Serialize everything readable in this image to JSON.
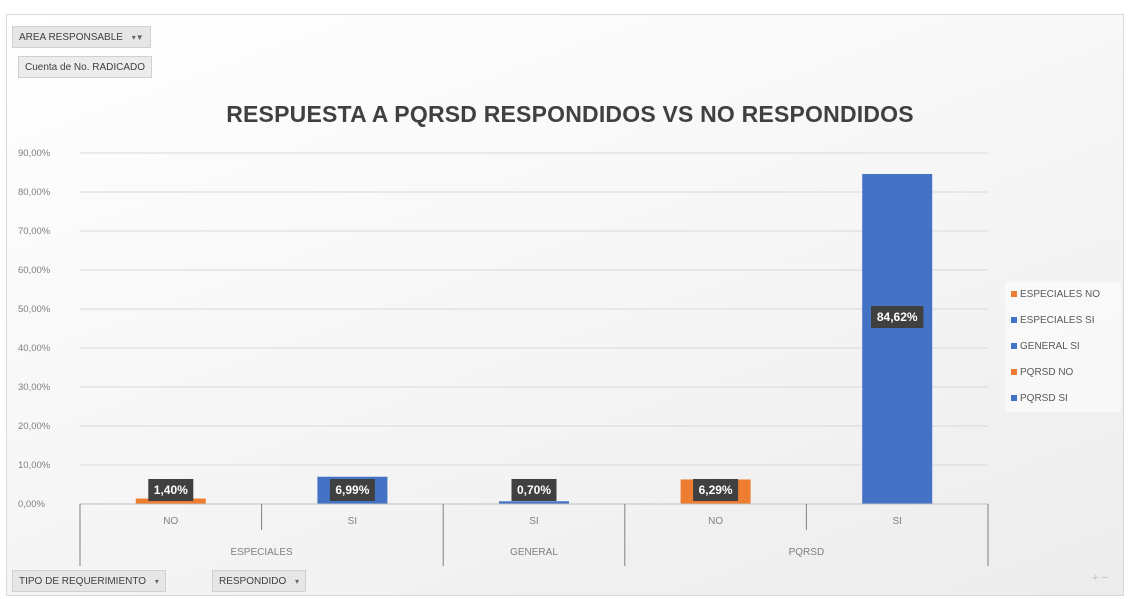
{
  "pivot": {
    "area_filter": "AREA RESPONSABLE",
    "value_field": "Cuenta de No. RADICADO",
    "row_field_1": "TIPO DE REQUERIMIENTO",
    "row_field_2": "RESPONDIDO",
    "zoom_label": "+ −"
  },
  "chart_data": {
    "type": "bar",
    "title": "RESPUESTA A PQRSD RESPONDIDOS VS NO RESPONDIDOS",
    "xlabel": "",
    "ylabel": "",
    "ylim": [
      0,
      90
    ],
    "yticks": [
      "0,00%",
      "10,00%",
      "20,00%",
      "30,00%",
      "40,00%",
      "50,00%",
      "60,00%",
      "70,00%",
      "80,00%",
      "90,00%"
    ],
    "categories": [
      "NO",
      "SI",
      "SI",
      "NO",
      "SI"
    ],
    "groups": [
      {
        "label": "ESPECIALES",
        "span": 2
      },
      {
        "label": "GENERAL",
        "span": 1
      },
      {
        "label": "PQRSD",
        "span": 2
      }
    ],
    "values": [
      1.4,
      6.99,
      0.7,
      6.29,
      84.62
    ],
    "value_labels": [
      "1,40%",
      "6,99%",
      "0,70%",
      "6,29%",
      "84,62%"
    ],
    "bar_colors": [
      "#ED7D31",
      "#4472C4",
      "#4472C4",
      "#ED7D31",
      "#4472C4"
    ],
    "legend": [
      {
        "name": "ESPECIALES NO",
        "color": "#ED7D31"
      },
      {
        "name": "ESPECIALES SI",
        "color": "#4472C4"
      },
      {
        "name": "GENERAL SI",
        "color": "#4472C4"
      },
      {
        "name": "PQRSD NO",
        "color": "#ED7D31"
      },
      {
        "name": "PQRSD SI",
        "color": "#4472C4"
      }
    ],
    "legend_position": "right",
    "grid": true
  }
}
